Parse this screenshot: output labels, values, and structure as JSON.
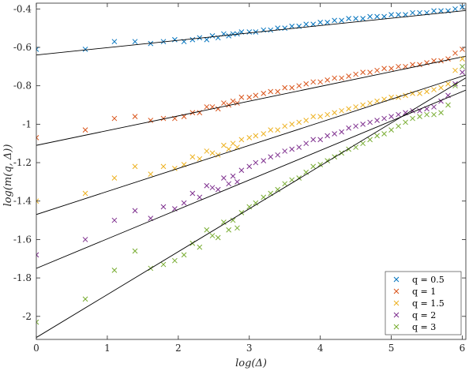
{
  "chart_data": {
    "type": "scatter",
    "xlabel": "log(Δ)",
    "ylabel": "log(m(q, Δ))",
    "xlim": [
      0,
      6.05
    ],
    "ylim": [
      -2.12,
      -0.37
    ],
    "xticks": [
      0,
      1,
      2,
      3,
      4,
      5,
      6
    ],
    "xtick_labels": [
      "0",
      "1",
      "2",
      "3",
      "4",
      "5",
      "6"
    ],
    "yticks": [
      -2,
      -1.8,
      -1.6,
      -1.4,
      -1.2,
      -1,
      -0.8,
      -0.6,
      -0.4
    ],
    "ytick_labels": [
      "-2",
      "-1.8",
      "-1.6",
      "-1.4",
      "-1.2",
      "-1",
      "-0.8",
      "-0.6",
      "-0.4"
    ],
    "grid": false,
    "legend_position": "bottom-right",
    "fit_line_color": "#000000",
    "series": [
      {
        "name": "q = 0.5",
        "color": "#0072BD",
        "marker": "x",
        "x": [
          0,
          0.69,
          1.1,
          1.39,
          1.61,
          1.79,
          1.95,
          2.08,
          2.2,
          2.3,
          2.4,
          2.48,
          2.56,
          2.64,
          2.71,
          2.77,
          2.83,
          2.89,
          3.0,
          3.09,
          3.2,
          3.3,
          3.4,
          3.5,
          3.6,
          3.7,
          3.8,
          3.9,
          4.0,
          4.1,
          4.2,
          4.3,
          4.4,
          4.5,
          4.6,
          4.7,
          4.8,
          4.9,
          5.0,
          5.1,
          5.2,
          5.3,
          5.4,
          5.5,
          5.6,
          5.7,
          5.8,
          5.9,
          6.0
        ],
        "y": [
          -0.61,
          -0.61,
          -0.57,
          -0.57,
          -0.58,
          -0.57,
          -0.56,
          -0.57,
          -0.56,
          -0.55,
          -0.56,
          -0.54,
          -0.55,
          -0.53,
          -0.54,
          -0.53,
          -0.53,
          -0.52,
          -0.52,
          -0.52,
          -0.51,
          -0.51,
          -0.5,
          -0.5,
          -0.49,
          -0.49,
          -0.48,
          -0.48,
          -0.47,
          -0.47,
          -0.46,
          -0.46,
          -0.45,
          -0.45,
          -0.45,
          -0.44,
          -0.44,
          -0.44,
          -0.43,
          -0.43,
          -0.43,
          -0.42,
          -0.42,
          -0.42,
          -0.41,
          -0.41,
          -0.41,
          -0.4,
          -0.39
        ],
        "fit": [
          -0.64,
          -0.41
        ]
      },
      {
        "name": "q = 1",
        "color": "#D95319",
        "marker": "x",
        "x": [
          0,
          0.69,
          1.1,
          1.39,
          1.61,
          1.79,
          1.95,
          2.08,
          2.2,
          2.3,
          2.4,
          2.48,
          2.56,
          2.64,
          2.71,
          2.77,
          2.83,
          2.89,
          3.0,
          3.09,
          3.2,
          3.3,
          3.4,
          3.5,
          3.6,
          3.7,
          3.8,
          3.9,
          4.0,
          4.1,
          4.2,
          4.3,
          4.4,
          4.5,
          4.6,
          4.7,
          4.8,
          4.9,
          5.0,
          5.1,
          5.2,
          5.3,
          5.4,
          5.5,
          5.6,
          5.7,
          5.8,
          5.9,
          6.0
        ],
        "y": [
          -1.07,
          -1.03,
          -0.97,
          -0.96,
          -0.98,
          -0.97,
          -0.97,
          -0.96,
          -0.94,
          -0.94,
          -0.91,
          -0.91,
          -0.92,
          -0.89,
          -0.9,
          -0.88,
          -0.89,
          -0.86,
          -0.86,
          -0.85,
          -0.84,
          -0.83,
          -0.83,
          -0.81,
          -0.81,
          -0.8,
          -0.79,
          -0.78,
          -0.78,
          -0.77,
          -0.76,
          -0.76,
          -0.75,
          -0.74,
          -0.73,
          -0.73,
          -0.72,
          -0.71,
          -0.71,
          -0.7,
          -0.7,
          -0.69,
          -0.69,
          -0.68,
          -0.67,
          -0.67,
          -0.66,
          -0.63,
          -0.61
        ],
        "fit": [
          -1.11,
          -0.65
        ]
      },
      {
        "name": "q = 1.5",
        "color": "#EDB120",
        "marker": "x",
        "x": [
          0,
          0.69,
          1.1,
          1.39,
          1.61,
          1.79,
          1.95,
          2.08,
          2.2,
          2.3,
          2.4,
          2.48,
          2.56,
          2.64,
          2.71,
          2.77,
          2.83,
          2.89,
          3.0,
          3.09,
          3.2,
          3.3,
          3.4,
          3.5,
          3.6,
          3.7,
          3.8,
          3.9,
          4.0,
          4.1,
          4.2,
          4.3,
          4.4,
          4.5,
          4.6,
          4.7,
          4.8,
          4.9,
          5.0,
          5.1,
          5.2,
          5.3,
          5.4,
          5.5,
          5.6,
          5.7,
          5.8,
          5.9,
          6.0
        ],
        "y": [
          -1.4,
          -1.36,
          -1.28,
          -1.22,
          -1.26,
          -1.22,
          -1.23,
          -1.21,
          -1.17,
          -1.18,
          -1.14,
          -1.15,
          -1.16,
          -1.11,
          -1.13,
          -1.1,
          -1.12,
          -1.08,
          -1.07,
          -1.06,
          -1.05,
          -1.03,
          -1.03,
          -1.01,
          -1.0,
          -0.99,
          -0.98,
          -0.96,
          -0.96,
          -0.95,
          -0.94,
          -0.93,
          -0.92,
          -0.91,
          -0.9,
          -0.89,
          -0.88,
          -0.87,
          -0.86,
          -0.86,
          -0.85,
          -0.84,
          -0.84,
          -0.83,
          -0.82,
          -0.81,
          -0.79,
          -0.72,
          -0.66
        ],
        "fit": [
          -1.47,
          -0.75
        ]
      },
      {
        "name": "q = 2",
        "color": "#7E2F8E",
        "marker": "x",
        "x": [
          0,
          0.69,
          1.1,
          1.39,
          1.61,
          1.79,
          1.95,
          2.08,
          2.2,
          2.3,
          2.4,
          2.48,
          2.56,
          2.64,
          2.71,
          2.77,
          2.83,
          2.89,
          3.0,
          3.09,
          3.2,
          3.3,
          3.4,
          3.5,
          3.6,
          3.7,
          3.8,
          3.9,
          4.0,
          4.1,
          4.2,
          4.3,
          4.4,
          4.5,
          4.6,
          4.7,
          4.8,
          4.9,
          5.0,
          5.1,
          5.2,
          5.3,
          5.4,
          5.5,
          5.6,
          5.7,
          5.8,
          5.9,
          6.0
        ],
        "y": [
          -1.68,
          -1.6,
          -1.5,
          -1.45,
          -1.49,
          -1.43,
          -1.44,
          -1.41,
          -1.36,
          -1.38,
          -1.32,
          -1.33,
          -1.34,
          -1.28,
          -1.31,
          -1.27,
          -1.3,
          -1.24,
          -1.22,
          -1.2,
          -1.19,
          -1.17,
          -1.16,
          -1.14,
          -1.13,
          -1.12,
          -1.1,
          -1.08,
          -1.08,
          -1.06,
          -1.05,
          -1.04,
          -1.02,
          -1.01,
          -1.0,
          -0.99,
          -0.98,
          -0.97,
          -0.96,
          -0.95,
          -0.94,
          -0.93,
          -0.93,
          -0.92,
          -0.91,
          -0.88,
          -0.85,
          -0.79,
          -0.73
        ],
        "fit": [
          -1.75,
          -0.83
        ]
      },
      {
        "name": "q = 3",
        "color": "#77AC30",
        "marker": "x",
        "x": [
          0,
          0.69,
          1.1,
          1.39,
          1.61,
          1.79,
          1.95,
          2.08,
          2.2,
          2.3,
          2.4,
          2.48,
          2.56,
          2.64,
          2.71,
          2.77,
          2.83,
          2.89,
          3.0,
          3.09,
          3.2,
          3.3,
          3.4,
          3.5,
          3.6,
          3.7,
          3.8,
          3.9,
          4.0,
          4.1,
          4.2,
          4.3,
          4.4,
          4.5,
          4.6,
          4.7,
          4.8,
          4.9,
          5.0,
          5.1,
          5.2,
          5.3,
          5.4,
          5.5,
          5.6,
          5.7,
          5.8,
          5.9,
          6.0
        ],
        "y": [
          -2.03,
          -1.91,
          -1.76,
          -1.66,
          -1.75,
          -1.73,
          -1.71,
          -1.68,
          -1.62,
          -1.64,
          -1.55,
          -1.58,
          -1.59,
          -1.51,
          -1.55,
          -1.5,
          -1.54,
          -1.46,
          -1.43,
          -1.41,
          -1.38,
          -1.36,
          -1.34,
          -1.31,
          -1.29,
          -1.28,
          -1.25,
          -1.22,
          -1.21,
          -1.19,
          -1.17,
          -1.15,
          -1.13,
          -1.12,
          -1.1,
          -1.08,
          -1.06,
          -1.05,
          -1.03,
          -1.01,
          -0.99,
          -0.97,
          -0.96,
          -0.95,
          -0.95,
          -0.94,
          -0.9,
          -0.8,
          -0.7
        ],
        "fit": [
          -2.11,
          -0.77
        ]
      }
    ]
  }
}
